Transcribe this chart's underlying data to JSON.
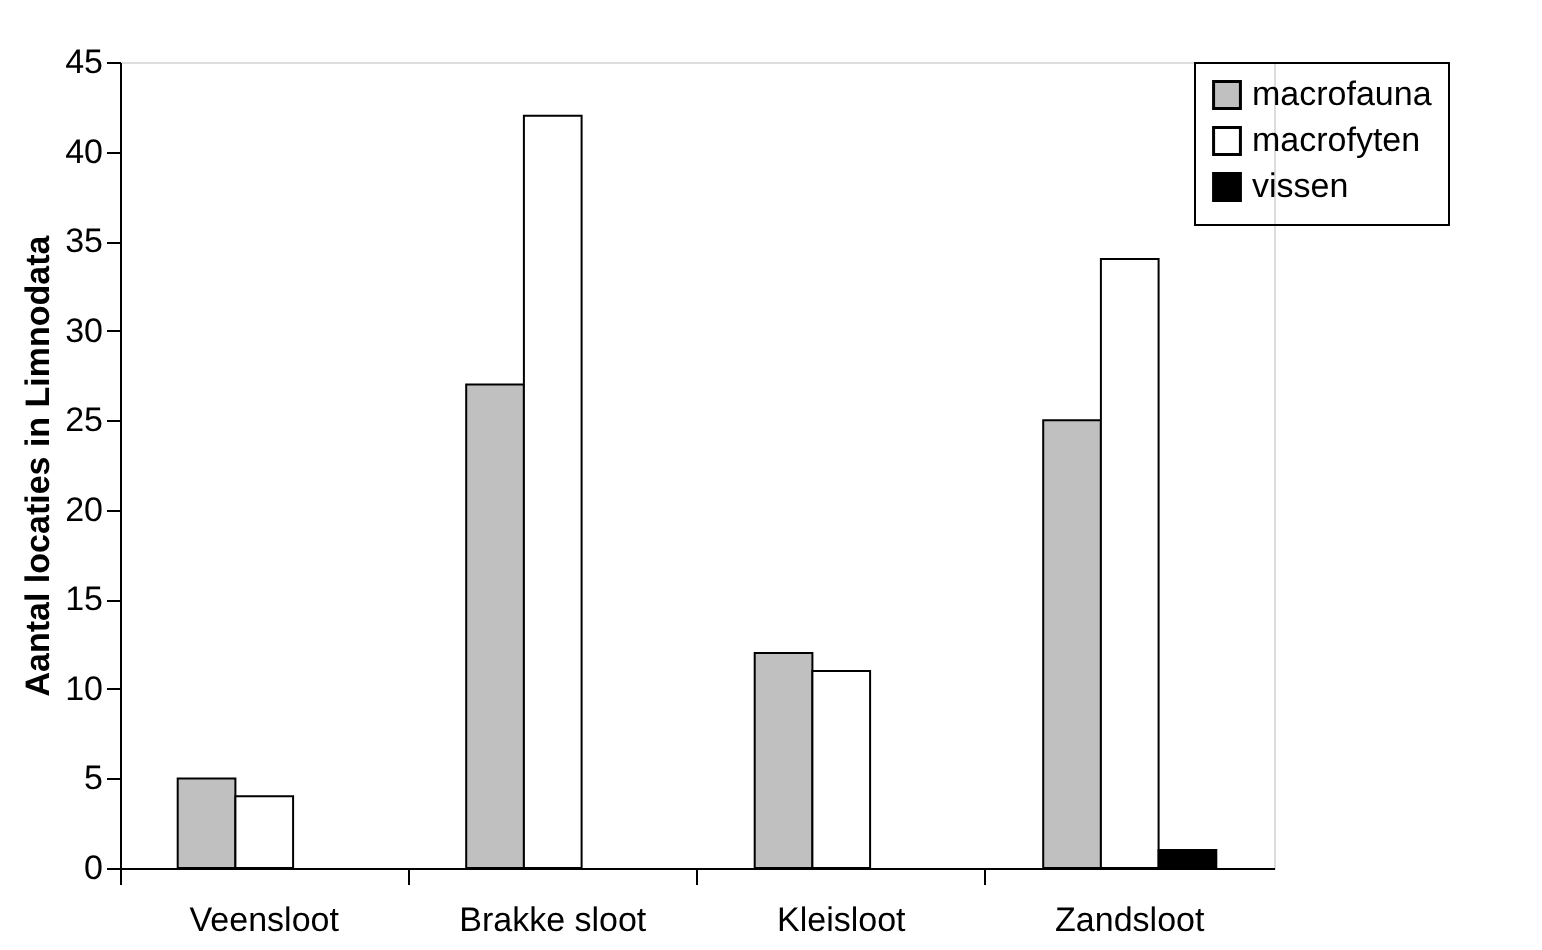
{
  "chart_data": {
    "type": "bar",
    "ylabel": "Aantal locaties in Limnodata",
    "categories": [
      "Veensloot",
      "Brakke sloot",
      "Kleisloot",
      "Zandsloot"
    ],
    "series": [
      {
        "name": "macrofauna",
        "color": "#c0c0c0",
        "values": [
          5,
          27,
          12,
          25
        ]
      },
      {
        "name": "macrofyten",
        "color": "#ffffff",
        "values": [
          4,
          42,
          11,
          34
        ]
      },
      {
        "name": "vissen",
        "color": "#000000",
        "values": [
          null,
          null,
          null,
          1
        ]
      }
    ],
    "ylim": [
      0,
      45
    ],
    "yticks": [
      0,
      5,
      10,
      15,
      20,
      25,
      30,
      35,
      40,
      45
    ],
    "grid": false,
    "legend": "right"
  }
}
